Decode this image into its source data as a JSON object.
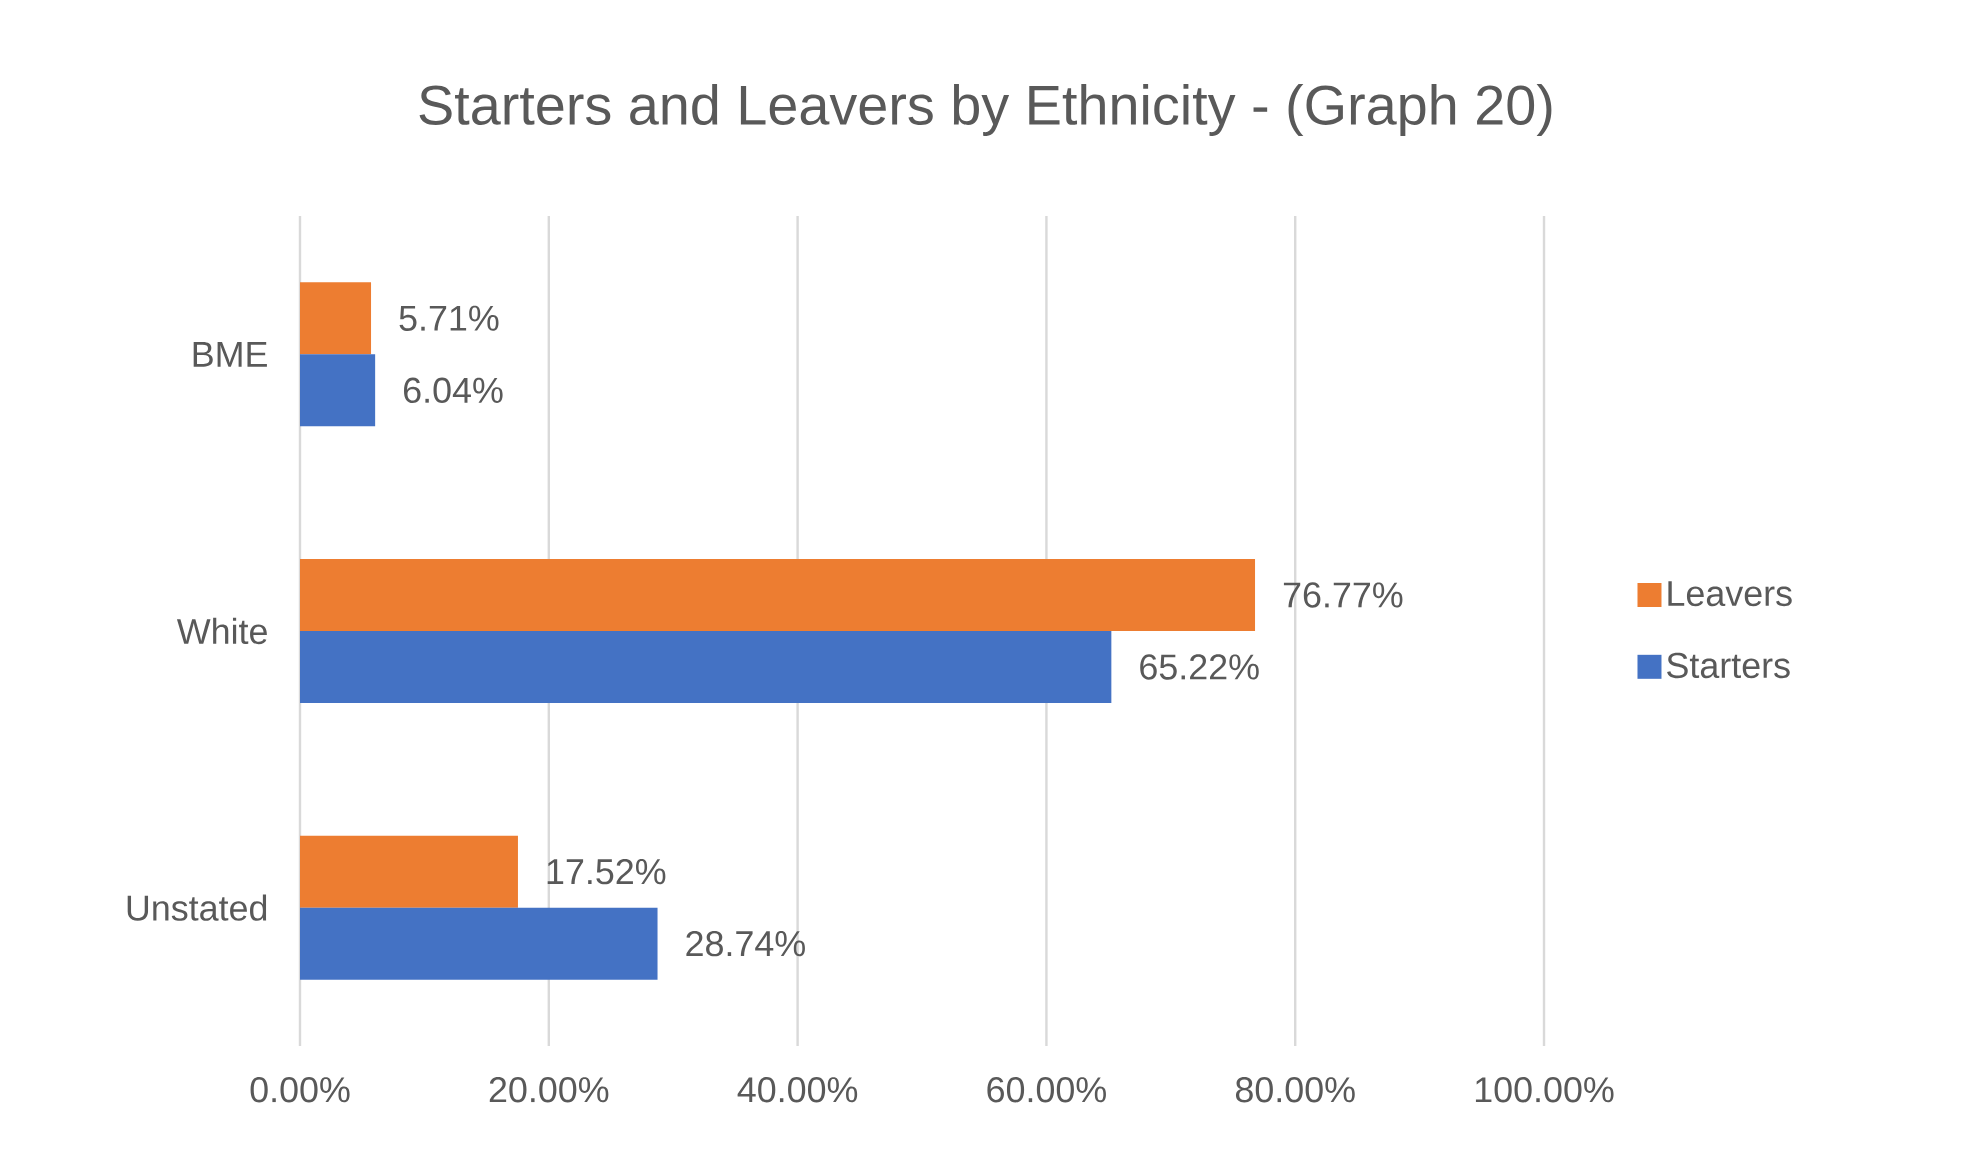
{
  "chart_data": {
    "type": "bar",
    "orientation": "horizontal",
    "title": "Starters and Leavers by Ethnicity - (Graph 20)",
    "categories": [
      "BME",
      "White",
      "Unstated"
    ],
    "series": [
      {
        "name": "Leavers",
        "color": "#ed7d31",
        "values": [
          5.71,
          76.77,
          17.52
        ],
        "value_labels": [
          "5.71%",
          "76.77%",
          "17.52%"
        ]
      },
      {
        "name": "Starters",
        "color": "#4472c4",
        "values": [
          6.04,
          65.22,
          28.74
        ],
        "value_labels": [
          "6.04%",
          "65.22%",
          "28.74%"
        ]
      }
    ],
    "xlim": [
      0,
      100
    ],
    "xticks": [
      {
        "value": 0,
        "label": "0.00%"
      },
      {
        "value": 20,
        "label": "20.00%"
      },
      {
        "value": 40,
        "label": "40.00%"
      },
      {
        "value": 60,
        "label": "60.00%"
      },
      {
        "value": 80,
        "label": "80.00%"
      },
      {
        "value": 100,
        "label": "100.00%"
      }
    ],
    "grid": "x",
    "legend": "right"
  }
}
